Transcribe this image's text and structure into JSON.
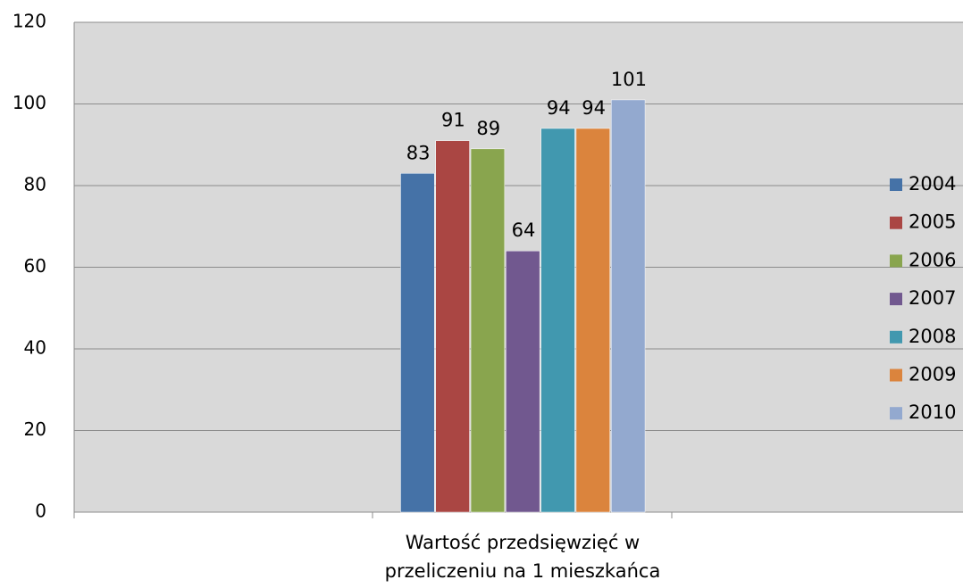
{
  "chart_data": {
    "type": "bar",
    "categories": [
      "Wartość przedsięwzięć w przeliczeniu na 1 mieszkańca"
    ],
    "series": [
      {
        "name": "2004",
        "color": "#4572a7",
        "values": [
          83
        ]
      },
      {
        "name": "2005",
        "color": "#aa4643",
        "values": [
          91
        ]
      },
      {
        "name": "2006",
        "color": "#89a54e",
        "values": [
          89
        ]
      },
      {
        "name": "2007",
        "color": "#71588f",
        "values": [
          64
        ]
      },
      {
        "name": "2008",
        "color": "#4198af",
        "values": [
          94
        ]
      },
      {
        "name": "2009",
        "color": "#db843d",
        "values": [
          94
        ]
      },
      {
        "name": "2010",
        "color": "#93a9cf",
        "values": [
          101
        ]
      }
    ],
    "ylim": [
      0,
      120
    ],
    "yticks": [
      0,
      20,
      40,
      60,
      80,
      100,
      120
    ],
    "grid": true,
    "legend": "right"
  }
}
